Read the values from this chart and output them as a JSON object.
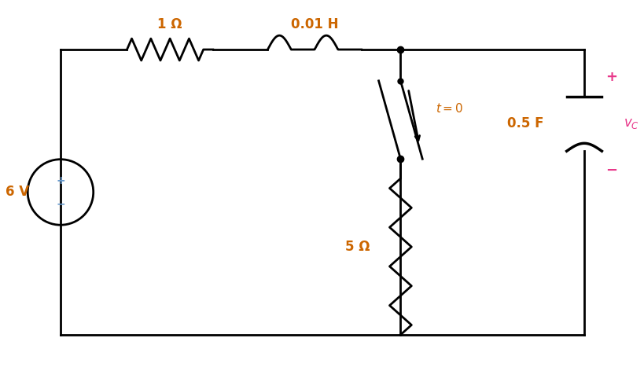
{
  "background_color": "#ffffff",
  "wire_color": "#000000",
  "component_color": "#000000",
  "label_color_orange": "#cc6600",
  "label_color_pink": "#e8388a",
  "label_color_blue": "#6699cc",
  "resistor_label": "1 Ω",
  "inductor_label": "0.01 H",
  "resistor2_label": "5 Ω",
  "capacitor_label": "0.5 F",
  "source_label": "6 V",
  "switch_label": "t = 0",
  "vc_label": "v_C",
  "fig_width": 8.19,
  "fig_height": 4.72,
  "dpi": 100
}
